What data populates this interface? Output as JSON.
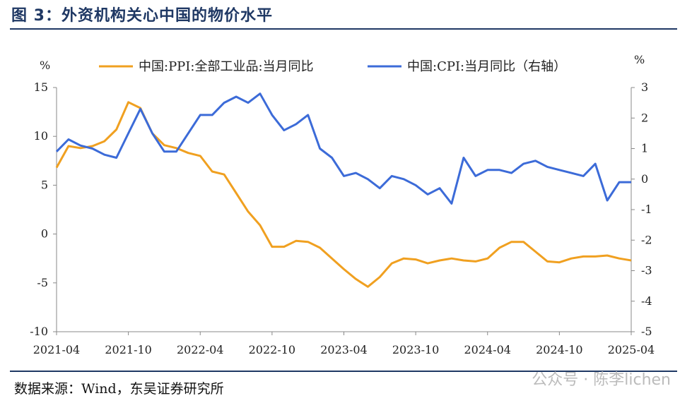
{
  "figure": {
    "title": "图 3：外资机构关心中国的物价水平",
    "source": "数据来源：Wind，东吴证券研究所",
    "watermark": "公众号 · 陈李lichen"
  },
  "chart_data": {
    "type": "line",
    "x": [
      "2021-04",
      "2021-05",
      "2021-06",
      "2021-07",
      "2021-08",
      "2021-09",
      "2021-10",
      "2021-11",
      "2021-12",
      "2022-01",
      "2022-02",
      "2022-03",
      "2022-04",
      "2022-05",
      "2022-06",
      "2022-07",
      "2022-08",
      "2022-09",
      "2022-10",
      "2022-11",
      "2022-12",
      "2023-01",
      "2023-02",
      "2023-03",
      "2023-04",
      "2023-05",
      "2023-06",
      "2023-07",
      "2023-08",
      "2023-09",
      "2023-10",
      "2023-11",
      "2023-12",
      "2024-01",
      "2024-02",
      "2024-03",
      "2024-04",
      "2024-05",
      "2024-06",
      "2024-07",
      "2024-08",
      "2024-09",
      "2024-10",
      "2024-11",
      "2024-12",
      "2025-01",
      "2025-02",
      "2025-03",
      "2025-04"
    ],
    "x_tick_labels": [
      "2021-04",
      "2021-10",
      "2022-04",
      "2022-10",
      "2023-04",
      "2023-10",
      "2024-04",
      "2024-10",
      "2025-04"
    ],
    "left_axis": {
      "unit_label": "%",
      "ylim": [
        -10,
        15
      ],
      "ticks": [
        "15",
        "10",
        "5",
        "0",
        "-5",
        "-10"
      ]
    },
    "right_axis": {
      "unit_label": "%",
      "ylim": [
        -5,
        3
      ],
      "ticks": [
        "3",
        "2",
        "1",
        "0",
        "-1",
        "-2",
        "-3",
        "-4",
        "-5"
      ]
    },
    "series": [
      {
        "name": "中国:PPI:全部工业品:当月同比",
        "axis": "left",
        "color": "#f0a020",
        "values": [
          6.8,
          9.0,
          8.8,
          9.0,
          9.5,
          10.7,
          13.5,
          12.9,
          10.3,
          9.1,
          8.8,
          8.3,
          8.0,
          6.4,
          6.1,
          4.2,
          2.3,
          0.9,
          -1.3,
          -1.3,
          -0.7,
          -0.8,
          -1.4,
          -2.5,
          -3.6,
          -4.6,
          -5.4,
          -4.4,
          -3.0,
          -2.5,
          -2.6,
          -3.0,
          -2.7,
          -2.5,
          -2.7,
          -2.8,
          -2.5,
          -1.4,
          -0.8,
          -0.8,
          -1.8,
          -2.8,
          -2.9,
          -2.5,
          -2.3,
          -2.3,
          -2.2,
          -2.5,
          -2.7
        ]
      },
      {
        "name": "中国:CPI:当月同比（右轴）",
        "axis": "right",
        "color": "#3c6bd8",
        "values": [
          0.9,
          1.3,
          1.1,
          1.0,
          0.8,
          0.7,
          1.5,
          2.3,
          1.5,
          0.9,
          0.9,
          1.5,
          2.1,
          2.1,
          2.5,
          2.7,
          2.5,
          2.8,
          2.1,
          1.6,
          1.8,
          2.1,
          1.0,
          0.7,
          0.1,
          0.2,
          0.0,
          -0.3,
          0.1,
          0.0,
          -0.2,
          -0.5,
          -0.3,
          -0.8,
          0.7,
          0.1,
          0.3,
          0.3,
          0.2,
          0.5,
          0.6,
          0.4,
          0.3,
          0.2,
          0.1,
          0.5,
          -0.7,
          -0.1,
          -0.1
        ]
      }
    ],
    "legend_position": "top",
    "grid": false
  }
}
